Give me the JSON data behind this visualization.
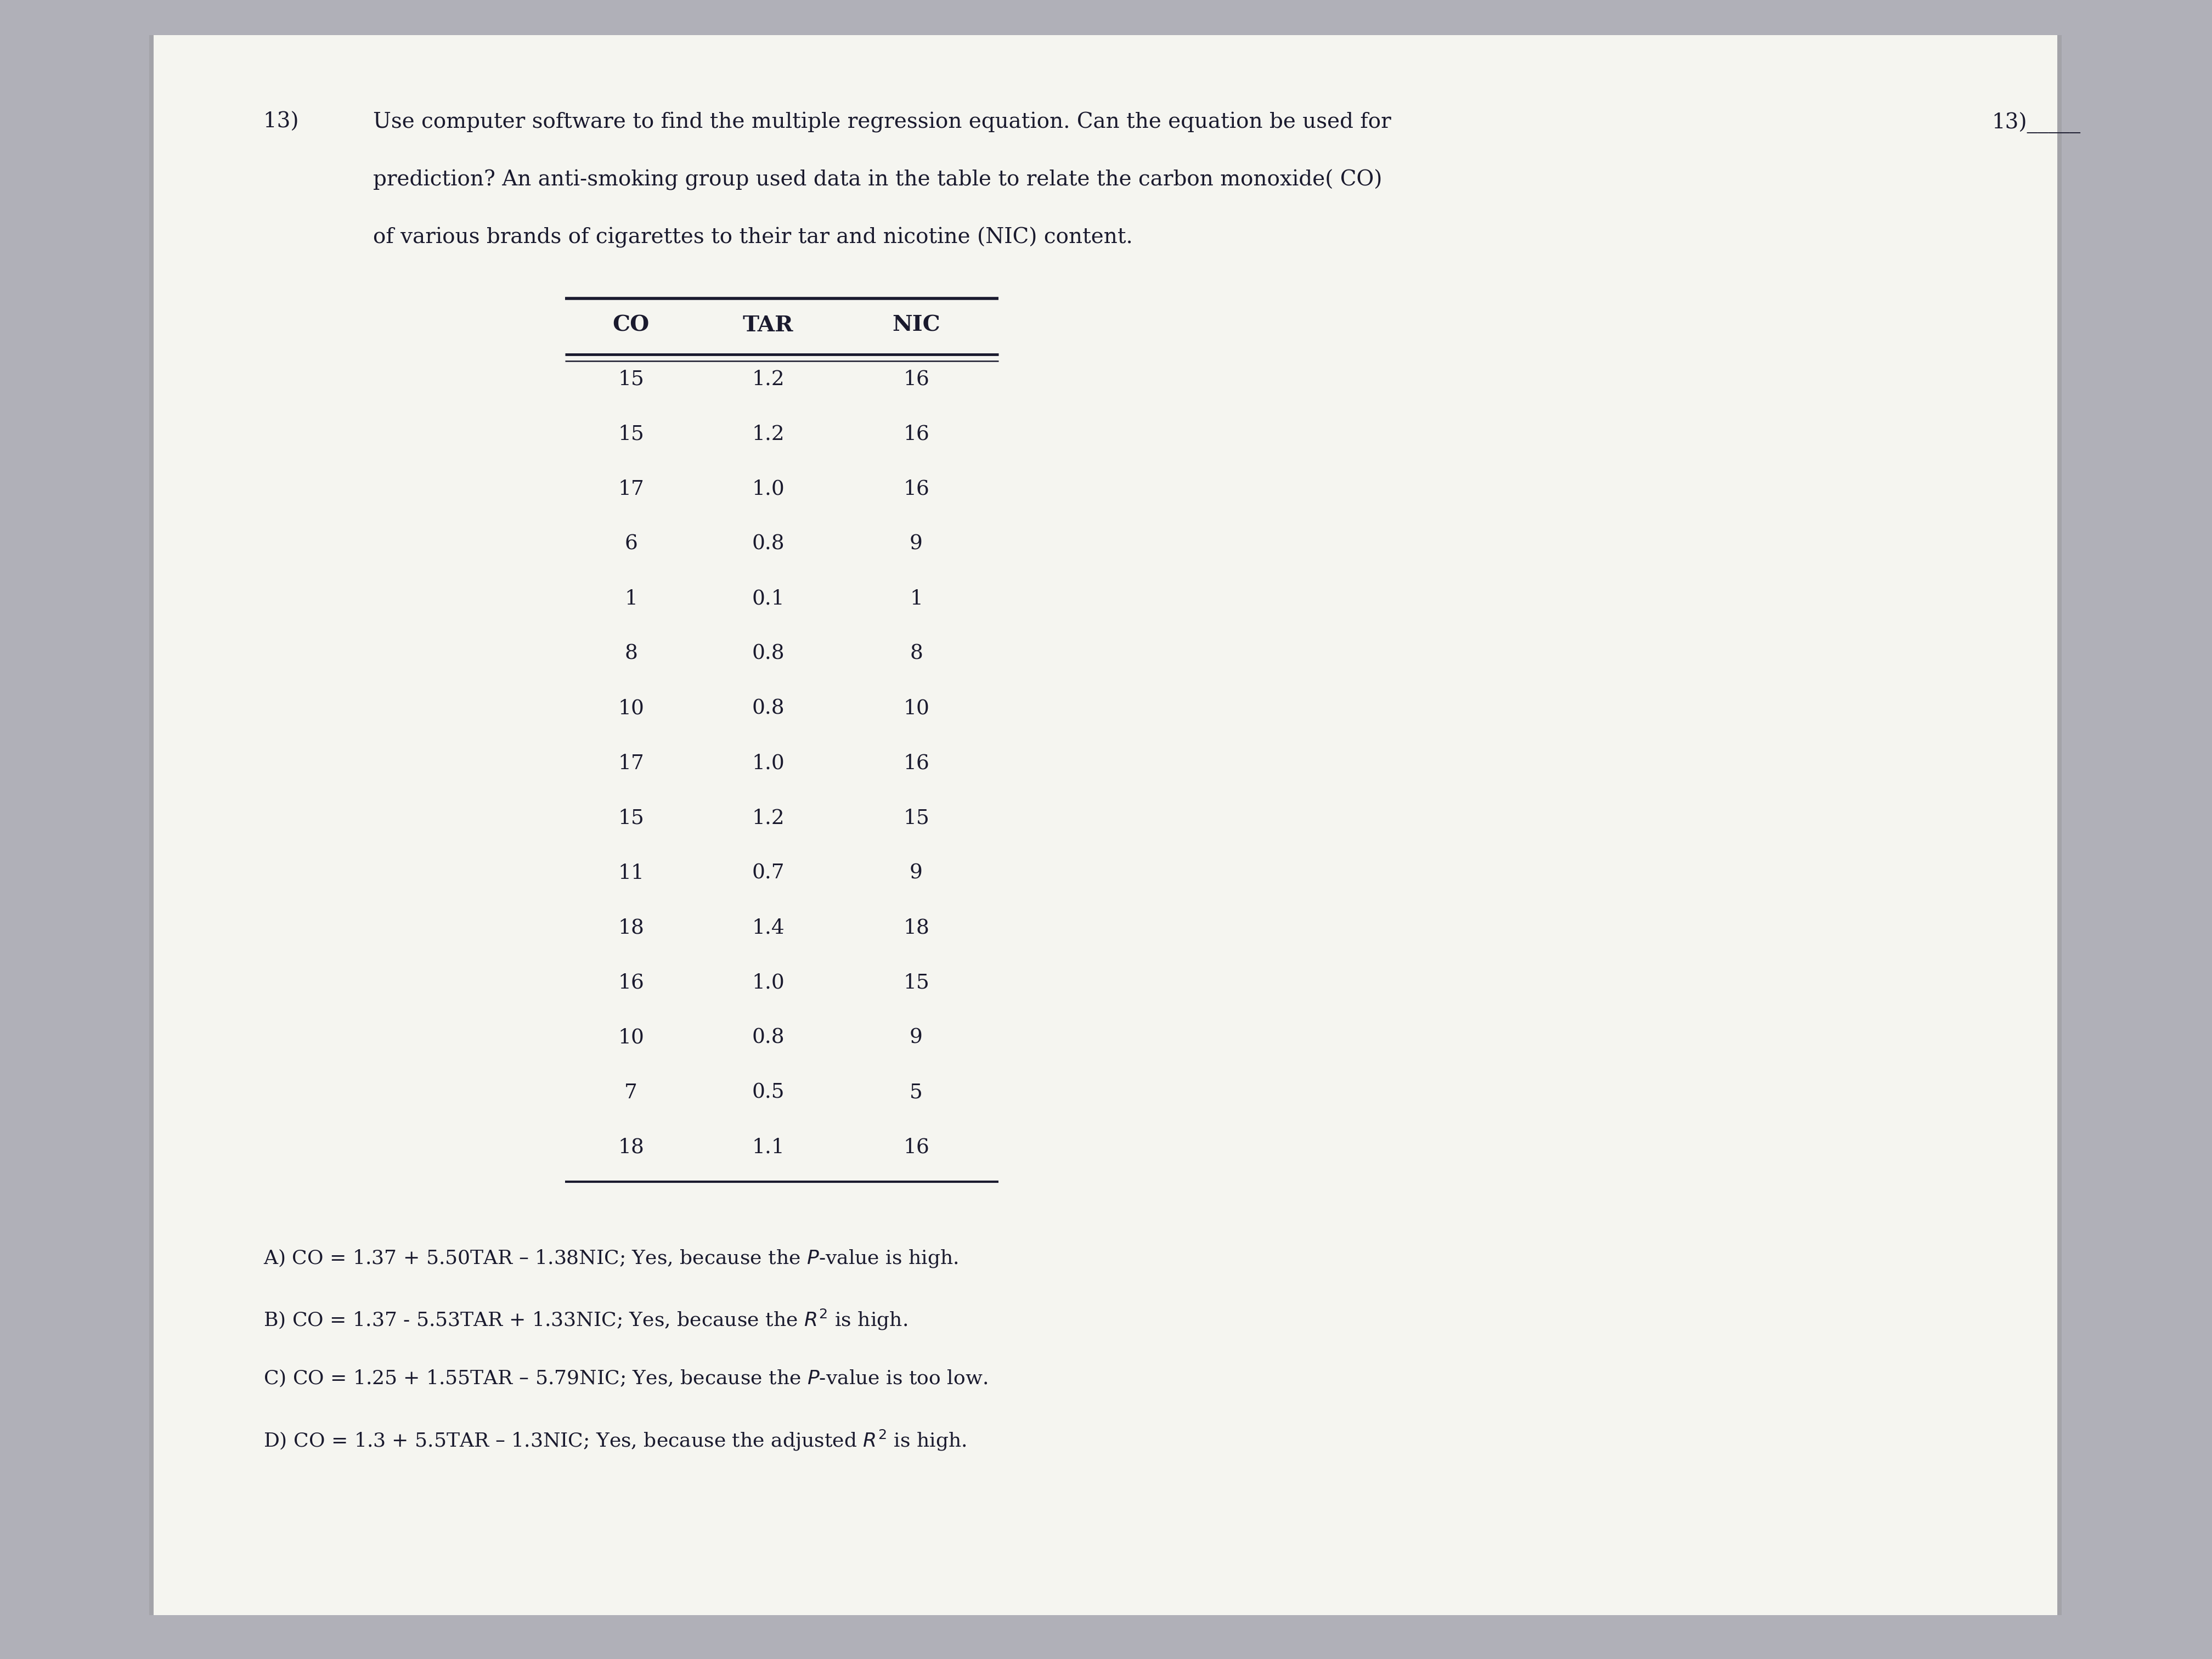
{
  "question_number": "13) ",
  "question_line1": "Use computer software to find the multiple regression equation. Can the equation be used for",
  "question_line2": "prediction? An anti-smoking group used data in the table to relate the carbon monoxide( CO)",
  "question_line3": "of various brands of cigarettes to their tar and nicotine (NIC) content.",
  "side_label": "13)_____",
  "col_headers": [
    "CO",
    "TAR",
    "NIC"
  ],
  "table_data": [
    [
      "15",
      "1.2",
      "16"
    ],
    [
      "15",
      "1.2",
      "16"
    ],
    [
      "17",
      "1.0",
      "16"
    ],
    [
      "6",
      "0.8",
      "9"
    ],
    [
      "1",
      "0.1",
      "1"
    ],
    [
      "8",
      "0.8",
      "8"
    ],
    [
      "10",
      "0.8",
      "10"
    ],
    [
      "17",
      "1.0",
      "16"
    ],
    [
      "15",
      "1.2",
      "15"
    ],
    [
      "11",
      "0.7",
      "9"
    ],
    [
      "18",
      "1.4",
      "18"
    ],
    [
      "16",
      "1.0",
      "15"
    ],
    [
      "10",
      "0.8",
      "9"
    ],
    [
      "7",
      "0.5",
      "5"
    ],
    [
      "18",
      "1.1",
      "16"
    ]
  ],
  "answer_A": "A) CO = 1.37 + 5.50TAR – 1.38NIC; Yes, because the $P$-value is high.",
  "answer_B": "B) CO = 1.37 - 5.53TAR + 1.33NIC; Yes, because the $R^2$ is high.",
  "answer_C": "C) CO = 1.25 + 1.55TAR – 5.79NIC; Yes, because the $P$-value is too low.",
  "answer_D": "D) CO = 1.3 + 5.5TAR – 1.3NIC; Yes, because the adjusted $R^2$ is high.",
  "bg_left_color": "#b0b0b8",
  "bg_right_color": "#b0b0b8",
  "paper_color": "#f5f5f0",
  "text_color": "#1a1a2e",
  "font_size_question": 28,
  "font_size_table": 27,
  "font_size_answers": 26
}
